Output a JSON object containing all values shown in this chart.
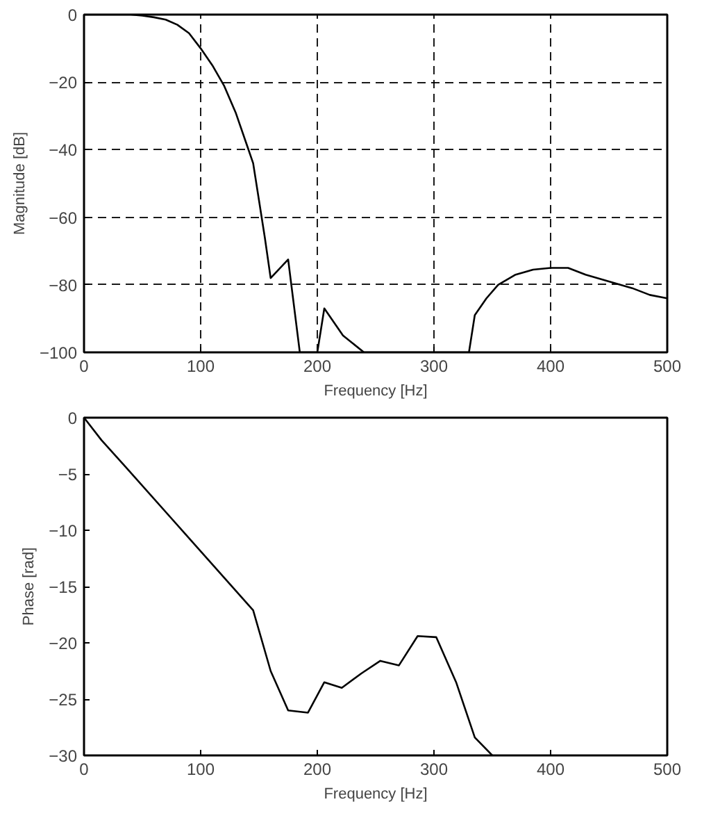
{
  "chart_data": [
    {
      "type": "line",
      "xlabel": "Frequency [Hz]",
      "ylabel": "Magnitude [dB]",
      "xlim": [
        0,
        500
      ],
      "ylim": [
        -100,
        0
      ],
      "xticks": [
        0,
        100,
        200,
        300,
        400,
        500
      ],
      "yticks": [
        -100,
        -80,
        -60,
        -40,
        -20,
        0
      ],
      "grid": true,
      "line_style": "solid",
      "marker": "none",
      "series": [
        {
          "color": "#000000",
          "x": [
            0,
            20,
            40,
            50,
            60,
            70,
            80,
            90,
            100,
            110,
            120,
            130,
            140,
            145,
            150,
            155,
            160,
            175,
            185,
            200,
            206,
            222,
            240,
            330,
            335,
            345,
            355,
            370,
            385,
            400,
            415,
            430,
            450,
            470,
            485,
            500
          ],
          "values": [
            0,
            0,
            0,
            -0.3,
            -0.8,
            -1.5,
            -3,
            -5.5,
            -10,
            -15,
            -21,
            -29,
            -39,
            -44,
            -55,
            -66,
            -78,
            -72.5,
            -100,
            -100,
            -87,
            -95,
            -100,
            -100,
            -89,
            -84,
            -80,
            -77,
            -75.5,
            -75,
            -75,
            -77,
            -79,
            -81,
            -83,
            -84
          ]
        }
      ]
    },
    {
      "type": "line",
      "xlabel": "Frequency [Hz]",
      "ylabel": "Phase [rad]",
      "xlim": [
        0,
        500
      ],
      "ylim": [
        -30,
        0
      ],
      "xticks": [
        0,
        100,
        200,
        300,
        400,
        500
      ],
      "yticks": [
        -30,
        -25,
        -20,
        -15,
        -10,
        -5,
        0
      ],
      "grid": false,
      "line_style": "solid",
      "marker": "none",
      "series": [
        {
          "color": "#000000",
          "x": [
            0,
            15,
            35,
            145,
            160,
            175,
            192,
            206,
            221,
            238,
            254,
            270,
            286,
            302,
            319,
            335,
            350
          ],
          "values": [
            0,
            -2,
            -4.3,
            -17.1,
            -22.5,
            -26,
            -26.2,
            -23.5,
            -24,
            -22.7,
            -21.6,
            -22,
            -19.4,
            -19.5,
            -23.5,
            -28.4,
            -30
          ]
        }
      ]
    }
  ]
}
